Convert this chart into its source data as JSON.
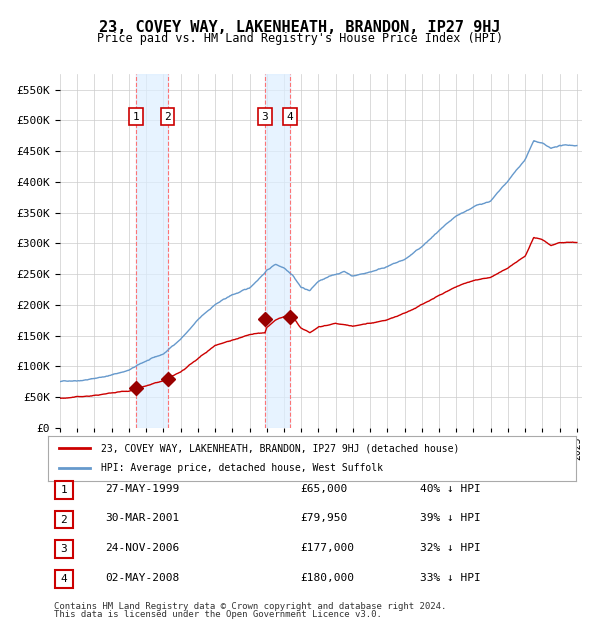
{
  "title": "23, COVEY WAY, LAKENHEATH, BRANDON, IP27 9HJ",
  "subtitle": "Price paid vs. HM Land Registry's House Price Index (HPI)",
  "legend_line1": "23, COVEY WAY, LAKENHEATH, BRANDON, IP27 9HJ (detached house)",
  "legend_line2": "HPI: Average price, detached house, West Suffolk",
  "footer1": "Contains HM Land Registry data © Crown copyright and database right 2024.",
  "footer2": "This data is licensed under the Open Government Licence v3.0.",
  "hpi_color": "#6699cc",
  "price_color": "#cc0000",
  "marker_color": "#990000",
  "background_color": "#ffffff",
  "grid_color": "#cccccc",
  "shade_color": "#ddeeff",
  "vline_color": "#ff6666",
  "ylim": [
    0,
    575000
  ],
  "yticks": [
    0,
    50000,
    100000,
    150000,
    200000,
    250000,
    300000,
    350000,
    400000,
    450000,
    500000,
    550000
  ],
  "transactions": [
    {
      "label": "1",
      "date": "27-MAY-1999",
      "price": 65000,
      "price_str": "£65,000",
      "pct": "40% ↓ HPI",
      "year": 1999.41
    },
    {
      "label": "2",
      "date": "30-MAR-2001",
      "price": 79950,
      "price_str": "£79,950",
      "pct": "39% ↓ HPI",
      "year": 2001.25
    },
    {
      "label": "3",
      "date": "24-NOV-2006",
      "price": 177000,
      "price_str": "£177,000",
      "pct": "32% ↓ HPI",
      "year": 2006.9
    },
    {
      "label": "4",
      "date": "02-MAY-2008",
      "price": 180000,
      "price_str": "£180,000",
      "pct": "33% ↓ HPI",
      "year": 2008.34
    }
  ]
}
